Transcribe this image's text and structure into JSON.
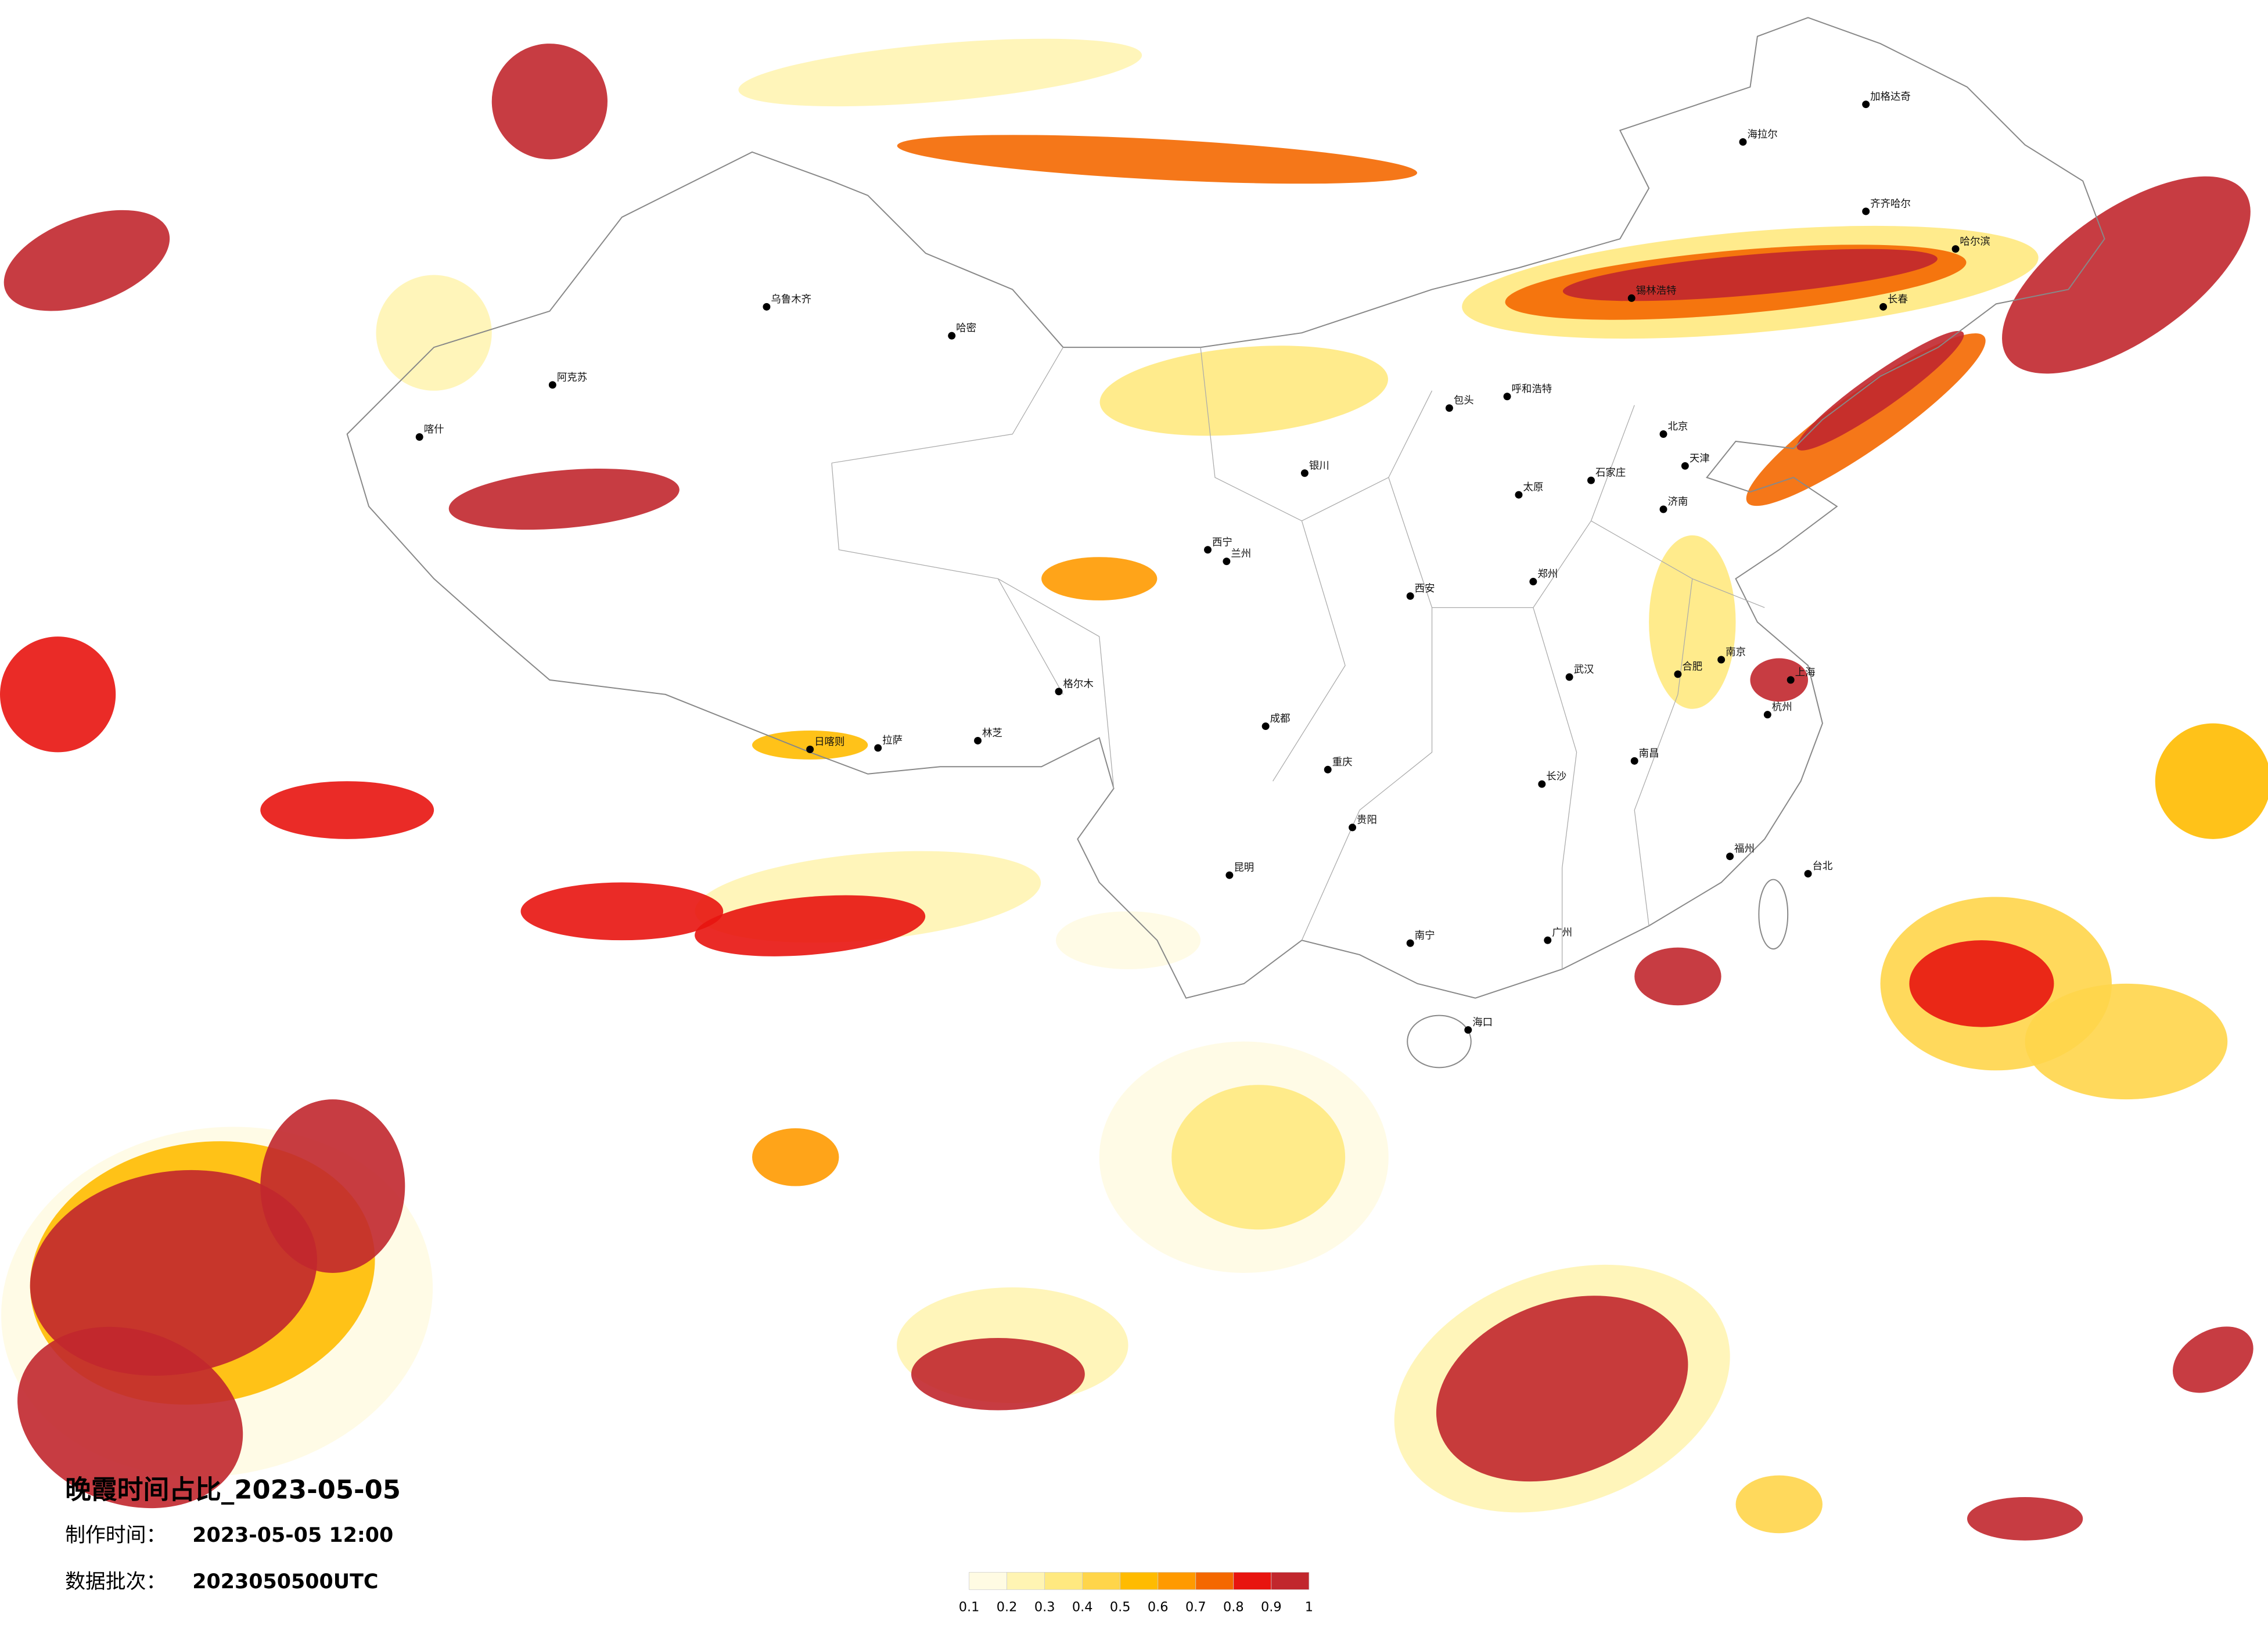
{
  "map": {
    "title": "晚霞时间占比_2023-05-05",
    "made_label": "制作时间：",
    "made_time": "2023-05-05 12:00",
    "batch_label": "数据批次：",
    "batch": "2023050500UTC",
    "colorbar": {
      "ticks": [
        0.1,
        0.2,
        0.3,
        0.4,
        0.5,
        0.6,
        0.7,
        0.8,
        0.9,
        1
      ],
      "colors": [
        "#fffbe3",
        "#fff4b3",
        "#ffe980",
        "#ffd54a",
        "#ffbb00",
        "#ff9a00",
        "#f46800",
        "#e8140f",
        "#c1272d"
      ]
    },
    "cities": [
      "北京",
      "天津",
      "上海",
      "武汉",
      "广州",
      "成都",
      "重庆",
      "西安",
      "兰州",
      "乌鲁木齐",
      "拉萨",
      "哈尔滨",
      "长春",
      "呼和浩特",
      "银川",
      "西宁",
      "昆明",
      "贵阳",
      "南宁",
      "海口",
      "郑州",
      "济南",
      "南京",
      "杭州",
      "福州",
      "南昌",
      "长沙",
      "合肥",
      "石家庄",
      "太原",
      "台北",
      "喀什",
      "阿克苏",
      "哈密",
      "格尔木",
      "日喀则",
      "林芝",
      "海拉尔",
      "齐齐哈尔",
      "加格达奇",
      "锡林浩特",
      "包头"
    ]
  }
}
